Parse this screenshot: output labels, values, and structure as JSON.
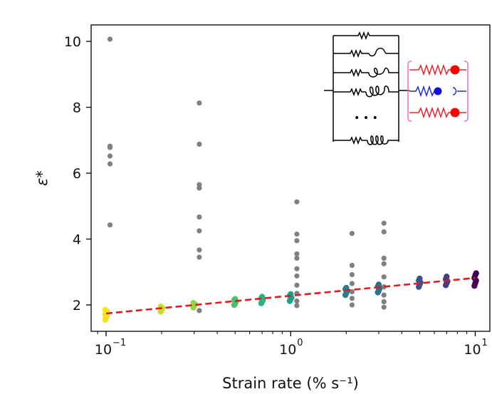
{
  "chart_data": {
    "type": "scatter",
    "title": "",
    "xlabel": "Strain rate (% s⁻¹)",
    "ylabel": "ε*",
    "xscale": "log",
    "xlim": [
      0.083,
      12.0
    ],
    "ylim": [
      1.2,
      10.5
    ],
    "x_ticks": [
      {
        "value": 0.1,
        "base": "10",
        "exp": "−1"
      },
      {
        "value": 1,
        "base": "10",
        "exp": "0"
      },
      {
        "value": 10,
        "base": "10",
        "exp": "1"
      }
    ],
    "y_ticks": [
      2,
      4,
      6,
      8,
      10
    ],
    "fit_line": {
      "style": "dashed",
      "color": "#e31a1c",
      "x": [
        0.1,
        10
      ],
      "y": [
        1.74,
        2.82
      ]
    },
    "series": [
      {
        "name": "outliers",
        "color": "#808080",
        "points": [
          [
            0.105,
            10.07
          ],
          [
            0.105,
            6.82
          ],
          [
            0.105,
            6.78
          ],
          [
            0.105,
            6.52
          ],
          [
            0.105,
            6.28
          ],
          [
            0.105,
            4.43
          ],
          [
            0.32,
            8.13
          ],
          [
            0.32,
            6.88
          ],
          [
            0.32,
            5.65
          ],
          [
            0.32,
            5.55
          ],
          [
            0.32,
            4.67
          ],
          [
            0.32,
            4.25
          ],
          [
            0.32,
            3.67
          ],
          [
            0.32,
            3.45
          ],
          [
            0.32,
            1.83
          ],
          [
            1.08,
            5.13
          ],
          [
            1.08,
            4.15
          ],
          [
            1.08,
            3.95
          ],
          [
            1.08,
            3.55
          ],
          [
            1.08,
            3.42
          ],
          [
            1.08,
            3.1
          ],
          [
            1.08,
            2.88
          ],
          [
            1.08,
            2.6
          ],
          [
            1.08,
            2.35
          ],
          [
            1.08,
            2.12
          ],
          [
            1.08,
            1.98
          ],
          [
            2.15,
            4.17
          ],
          [
            2.15,
            3.2
          ],
          [
            2.15,
            2.92
          ],
          [
            2.15,
            2.65
          ],
          [
            2.15,
            2.4
          ],
          [
            2.15,
            2.2
          ],
          [
            2.15,
            2.0
          ],
          [
            3.2,
            4.48
          ],
          [
            3.2,
            4.22
          ],
          [
            3.2,
            3.42
          ],
          [
            3.2,
            3.25
          ],
          [
            3.2,
            2.85
          ],
          [
            3.2,
            2.55
          ],
          [
            3.2,
            2.3
          ],
          [
            3.2,
            2.1
          ],
          [
            3.2,
            1.93
          ]
        ]
      },
      {
        "name": "measurements",
        "clusters": [
          {
            "x": 0.1,
            "color": "#f2e31a",
            "y": [
              1.55,
              1.62,
              1.66,
              1.7,
              1.75,
              1.8,
              1.85
            ]
          },
          {
            "x": 0.2,
            "color": "#c2df23",
            "y": [
              1.8,
              1.86,
              1.9,
              1.95
            ]
          },
          {
            "x": 0.3,
            "color": "#8fd744",
            "y": [
              1.92,
              1.97,
              2.02,
              2.06
            ]
          },
          {
            "x": 0.5,
            "color": "#4ac16d",
            "y": [
              2.0,
              2.05,
              2.1,
              2.15,
              2.18
            ]
          },
          {
            "x": 0.7,
            "color": "#2db27d",
            "y": [
              2.05,
              2.1,
              2.15,
              2.2,
              2.25
            ]
          },
          {
            "x": 1.0,
            "color": "#1fa187",
            "y": [
              2.12,
              2.18,
              2.22,
              2.28,
              2.33
            ]
          },
          {
            "x": 2.0,
            "color": "#277f8e",
            "y": [
              2.3,
              2.36,
              2.42,
              2.48,
              2.52
            ]
          },
          {
            "x": 3.0,
            "color": "#2c728e",
            "y": [
              2.38,
              2.44,
              2.5,
              2.56,
              2.62
            ]
          },
          {
            "x": 5.0,
            "color": "#3b528b",
            "y": [
              2.55,
              2.62,
              2.68,
              2.74,
              2.8
            ]
          },
          {
            "x": 7.0,
            "color": "#433e85",
            "y": [
              2.6,
              2.66,
              2.72,
              2.78,
              2.86
            ]
          },
          {
            "x": 10.0,
            "color": "#440154",
            "y": [
              2.58,
              2.66,
              2.74,
              2.82,
              2.9,
              2.96
            ]
          }
        ]
      }
    ],
    "inset": {
      "description": "spring-pot rheological model schematic",
      "dots_label": "• • •",
      "colors": {
        "black": "#000000",
        "spring_red": "#e8262b",
        "spring_blue": "#1f2fcf",
        "bracket": "#f06bc8",
        "ball_red": "#ff0000",
        "ball_blue": "#1111dd"
      }
    }
  }
}
